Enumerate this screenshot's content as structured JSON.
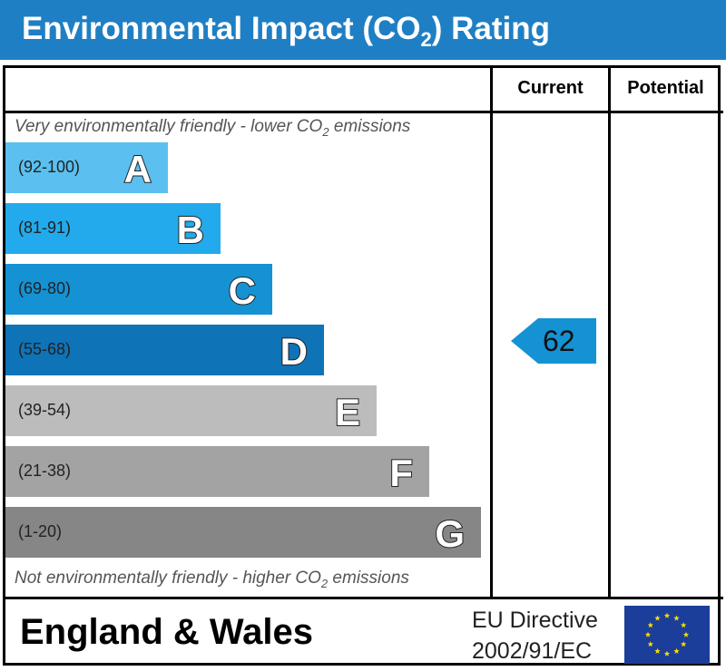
{
  "header": {
    "title_prefix": "Environmental Impact (CO",
    "title_sub": "2",
    "title_suffix": ") Rating"
  },
  "columns": {
    "current": "Current",
    "potential": "Potential"
  },
  "top_note": {
    "before": "Very environmentally friendly - lower CO",
    "sub": "2",
    "after": " emissions"
  },
  "bottom_note": {
    "before": "Not environmentally friendly - higher CO",
    "sub": "2",
    "after": " emissions"
  },
  "chart_data": {
    "type": "bar",
    "categories": [
      "A",
      "B",
      "C",
      "D",
      "E",
      "F",
      "G"
    ],
    "bands": [
      {
        "letter": "A",
        "range": "(92-100)",
        "min": 92,
        "max": 100,
        "color": "#5bc0ef"
      },
      {
        "letter": "B",
        "range": "(81-91)",
        "min": 81,
        "max": 91,
        "color": "#22aaec"
      },
      {
        "letter": "C",
        "range": "(69-80)",
        "min": 69,
        "max": 80,
        "color": "#1592d4"
      },
      {
        "letter": "D",
        "range": "(55-68)",
        "min": 55,
        "max": 68,
        "color": "#0f73b8"
      },
      {
        "letter": "E",
        "range": "(39-54)",
        "min": 39,
        "max": 54,
        "color": "#bcbcbc"
      },
      {
        "letter": "F",
        "range": "(21-38)",
        "min": 21,
        "max": 38,
        "color": "#a3a3a3"
      },
      {
        "letter": "G",
        "range": "(1-20)",
        "min": 1,
        "max": 20,
        "color": "#868686"
      }
    ],
    "current": {
      "value": 62,
      "label": "62",
      "band": "D",
      "color": "#1592d4"
    },
    "potential": null
  },
  "footer": {
    "region": "England & Wales",
    "directive_line1": "EU Directive",
    "directive_line2": "2002/91/EC",
    "flag_colors": {
      "background": "#1a3e9a",
      "stars": "#ffde00"
    }
  }
}
